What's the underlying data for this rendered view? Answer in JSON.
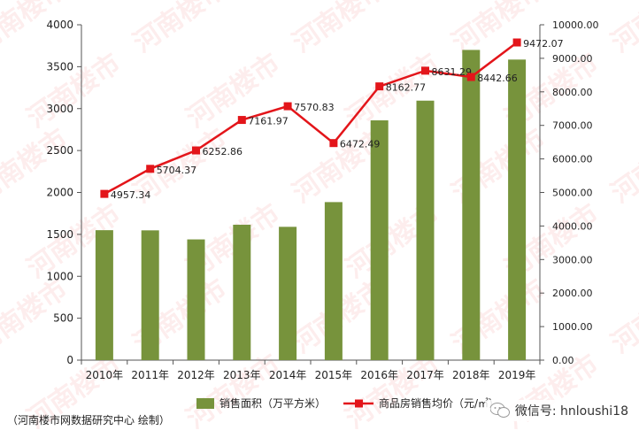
{
  "chart_data": {
    "type": "bar+line",
    "categories": [
      "2010年",
      "2011年",
      "2012年",
      "2013年",
      "2014年",
      "2015年",
      "2016年",
      "2017年",
      "2018年",
      "2019年"
    ],
    "series": [
      {
        "name": "销售面积（万平方米）",
        "type": "bar",
        "axis": "left",
        "color": "#77933C",
        "values": [
          1550,
          1548,
          1440,
          1615,
          1590,
          1885,
          2860,
          3095,
          3700,
          3585
        ]
      },
      {
        "name": "商品房销售均价（元/㎡）",
        "type": "line",
        "axis": "right",
        "color": "#E3151A",
        "values": [
          4957.34,
          5704.37,
          6252.86,
          7161.97,
          7570.83,
          6472.49,
          8162.77,
          8631.29,
          8442.66,
          9472.07
        ],
        "data_labels": [
          "4957.34",
          "5704.37",
          "6252.86",
          "7161.97",
          "7570.83",
          "6472.49",
          "8162.77",
          "8631.29",
          "8442.66",
          "9472.07"
        ]
      }
    ],
    "y_left": {
      "min": 0,
      "max": 4000,
      "step": 500,
      "ticks": [
        "0",
        "500",
        "1000",
        "1500",
        "2000",
        "2500",
        "3000",
        "3500",
        "4000"
      ]
    },
    "y_right": {
      "min": 0,
      "max": 10000,
      "step": 1000,
      "ticks": [
        "0.00",
        "1000.00",
        "2000.00",
        "3000.00",
        "4000.00",
        "5000.00",
        "6000.00",
        "7000.00",
        "8000.00",
        "9000.00",
        "10000.00"
      ]
    },
    "legend_labels": [
      "销售面积（万平方米）",
      "商品房销售均价（元/㎡）"
    ],
    "legend_position": "bottom",
    "grid": false
  },
  "source_note": "（河南楼市网数据研究中心   绘制）",
  "watermark_text": "河南楼市",
  "wechat": {
    "label": "微信号: hnloushi18",
    "icon": "wechat-icon"
  }
}
